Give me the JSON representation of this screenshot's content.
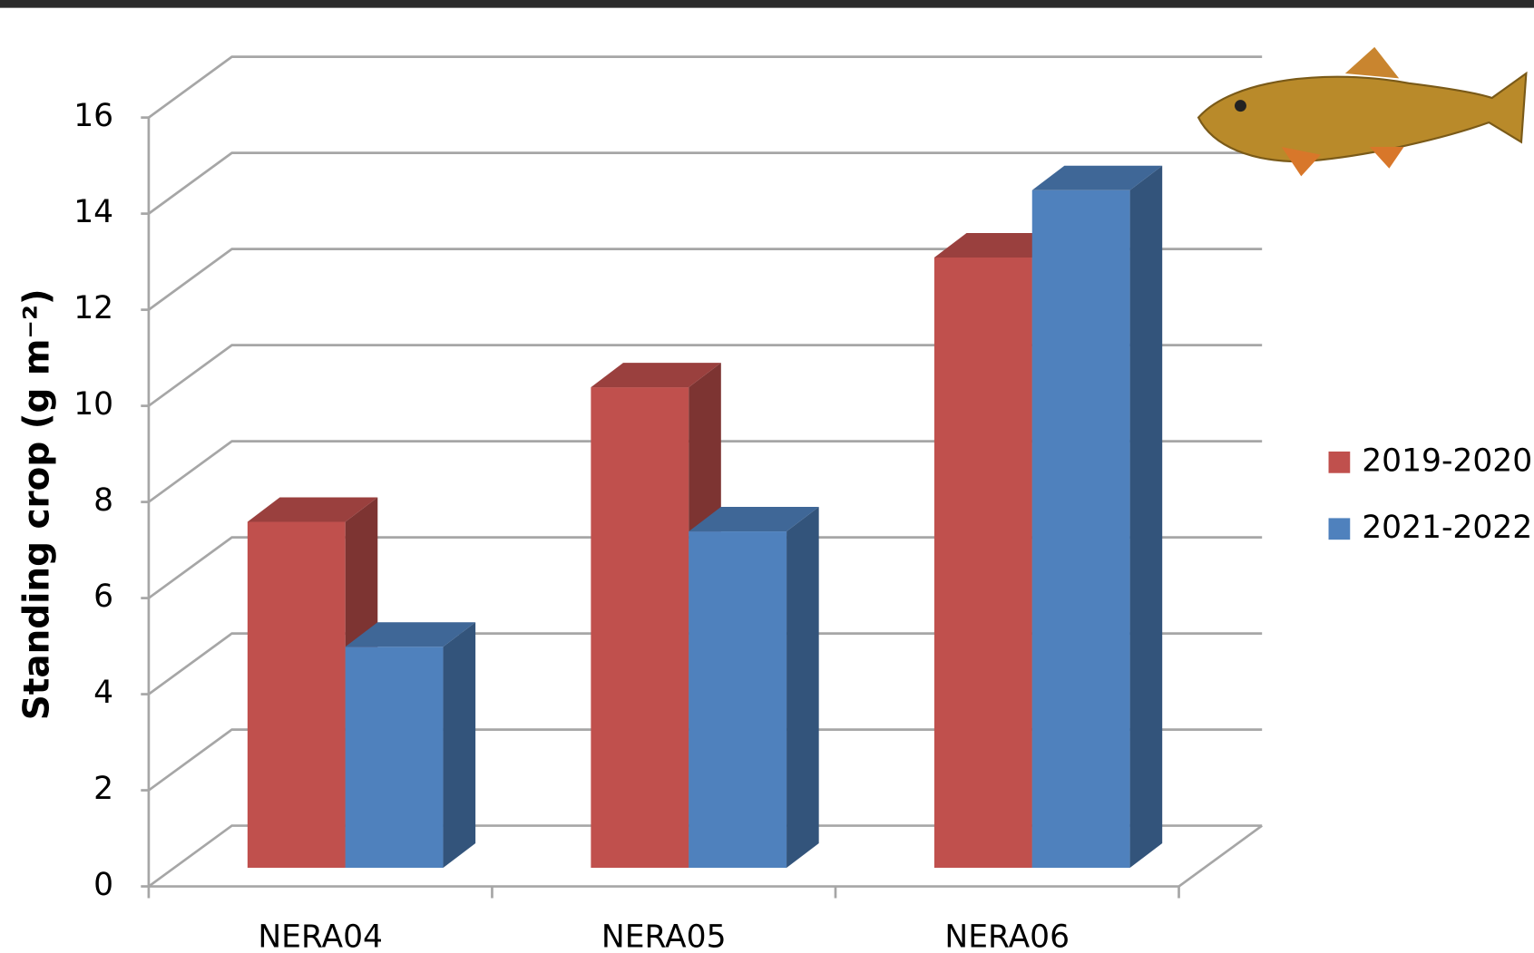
{
  "chart_data": {
    "type": "bar3d",
    "y_label": "Standing crop (g m⁻²)",
    "categories": [
      "NERA04",
      "NERA05",
      "NERA06"
    ],
    "series": [
      {
        "name": "2019-2020",
        "color": "#c0504d",
        "values": [
          7.2,
          10.0,
          12.7
        ]
      },
      {
        "name": "2021-2022",
        "color": "#4f81bd",
        "values": [
          4.6,
          7.0,
          14.1
        ]
      }
    ],
    "ylim": [
      0,
      16
    ],
    "yticks": [
      0,
      2,
      4,
      6,
      8,
      10,
      12,
      14,
      16
    ],
    "grid": true,
    "legend": "right"
  }
}
